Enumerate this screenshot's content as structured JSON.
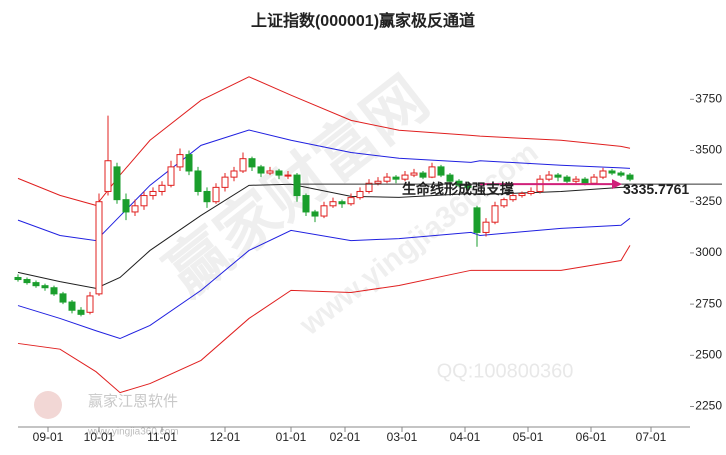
{
  "chart_data": {
    "type": "candlestick",
    "title": "上证指数(000001)赢家极反通道",
    "xlim": [
      0,
      224
    ],
    "xticks": [
      {
        "value": 10,
        "label": "09-01"
      },
      {
        "value": 27,
        "label": "10-01"
      },
      {
        "value": 48,
        "label": "11-01"
      },
      {
        "value": 69,
        "label": "12-01"
      },
      {
        "value": 91,
        "label": "01-01"
      },
      {
        "value": 109,
        "label": "02-01"
      },
      {
        "value": 128,
        "label": "03-01"
      },
      {
        "value": 149,
        "label": "04-01"
      },
      {
        "value": 170,
        "label": "05-01"
      },
      {
        "value": 191,
        "label": "06-01"
      },
      {
        "value": 211,
        "label": "07-01"
      }
    ],
    "ylim": [
      2150,
      4020
    ],
    "yticks": [
      2250,
      2500,
      2750,
      3000,
      3250,
      3500,
      3750
    ],
    "grid": false,
    "up_color": "#e0201f",
    "down_color": "#1a9e2c",
    "x": [
      0,
      3,
      6,
      9,
      12,
      15,
      18,
      21,
      24,
      27,
      30,
      33,
      36,
      39,
      42,
      45,
      48,
      51,
      54,
      57,
      60,
      63,
      66,
      69,
      72,
      75,
      78,
      81,
      84,
      87,
      90,
      93,
      96,
      99,
      102,
      105,
      108,
      111,
      114,
      117,
      120,
      123,
      126,
      129,
      132,
      135,
      138,
      141,
      144,
      147,
      150,
      153,
      156,
      159,
      162,
      165,
      168,
      171,
      174,
      177,
      180,
      183,
      186,
      189,
      192,
      195,
      198,
      201,
      204
    ],
    "ohlc": [
      [
        2880,
        2895,
        2860,
        2870
      ],
      [
        2870,
        2880,
        2845,
        2855
      ],
      [
        2855,
        2865,
        2830,
        2840
      ],
      [
        2840,
        2850,
        2815,
        2830
      ],
      [
        2830,
        2840,
        2790,
        2800
      ],
      [
        2800,
        2810,
        2750,
        2760
      ],
      [
        2760,
        2770,
        2705,
        2720
      ],
      [
        2720,
        2735,
        2690,
        2700
      ],
      [
        2710,
        2810,
        2700,
        2790
      ],
      [
        2800,
        3290,
        2790,
        3250
      ],
      [
        3300,
        3670,
        3280,
        3450
      ],
      [
        3420,
        3440,
        3240,
        3260
      ],
      [
        3260,
        3290,
        3160,
        3200
      ],
      [
        3200,
        3260,
        3180,
        3230
      ],
      [
        3230,
        3300,
        3210,
        3280
      ],
      [
        3280,
        3320,
        3260,
        3300
      ],
      [
        3300,
        3350,
        3280,
        3330
      ],
      [
        3330,
        3450,
        3320,
        3420
      ],
      [
        3420,
        3510,
        3400,
        3480
      ],
      [
        3480,
        3500,
        3380,
        3400
      ],
      [
        3400,
        3420,
        3280,
        3300
      ],
      [
        3300,
        3320,
        3220,
        3250
      ],
      [
        3250,
        3340,
        3240,
        3320
      ],
      [
        3320,
        3390,
        3300,
        3370
      ],
      [
        3370,
        3420,
        3350,
        3400
      ],
      [
        3400,
        3490,
        3390,
        3460
      ],
      [
        3460,
        3470,
        3400,
        3420
      ],
      [
        3420,
        3430,
        3370,
        3390
      ],
      [
        3390,
        3420,
        3380,
        3400
      ],
      [
        3400,
        3410,
        3360,
        3380
      ],
      [
        3380,
        3400,
        3360,
        3380
      ],
      [
        3380,
        3390,
        3250,
        3280
      ],
      [
        3280,
        3290,
        3180,
        3200
      ],
      [
        3200,
        3210,
        3150,
        3180
      ],
      [
        3180,
        3250,
        3170,
        3230
      ],
      [
        3230,
        3270,
        3220,
        3250
      ],
      [
        3250,
        3260,
        3220,
        3240
      ],
      [
        3240,
        3290,
        3230,
        3270
      ],
      [
        3270,
        3320,
        3260,
        3300
      ],
      [
        3300,
        3360,
        3290,
        3340
      ],
      [
        3340,
        3370,
        3330,
        3350
      ],
      [
        3350,
        3390,
        3340,
        3370
      ],
      [
        3370,
        3380,
        3340,
        3360
      ],
      [
        3360,
        3400,
        3350,
        3380
      ],
      [
        3380,
        3410,
        3370,
        3390
      ],
      [
        3390,
        3400,
        3360,
        3370
      ],
      [
        3370,
        3440,
        3365,
        3420
      ],
      [
        3420,
        3430,
        3370,
        3380
      ],
      [
        3380,
        3390,
        3340,
        3350
      ],
      [
        3350,
        3360,
        3320,
        3330
      ],
      [
        3330,
        3350,
        3310,
        3320
      ],
      [
        3220,
        3230,
        3030,
        3100
      ],
      [
        3100,
        3170,
        3080,
        3150
      ],
      [
        3150,
        3250,
        3140,
        3230
      ],
      [
        3230,
        3270,
        3220,
        3260
      ],
      [
        3260,
        3290,
        3250,
        3280
      ],
      [
        3280,
        3300,
        3270,
        3290
      ],
      [
        3290,
        3320,
        3280,
        3300
      ],
      [
        3300,
        3380,
        3290,
        3360
      ],
      [
        3360,
        3400,
        3350,
        3380
      ],
      [
        3380,
        3390,
        3350,
        3370
      ],
      [
        3370,
        3380,
        3340,
        3350
      ],
      [
        3350,
        3375,
        3340,
        3360
      ],
      [
        3360,
        3370,
        3330,
        3340
      ],
      [
        3340,
        3385,
        3335,
        3370
      ],
      [
        3370,
        3415,
        3360,
        3400
      ],
      [
        3400,
        3410,
        3380,
        3390
      ],
      [
        3390,
        3400,
        3370,
        3380
      ],
      [
        3380,
        3390,
        3350,
        3360
      ]
    ],
    "line_x": [
      0,
      14,
      26,
      34,
      44,
      61,
      77,
      91,
      111,
      127,
      151,
      154,
      181,
      201,
      204
    ],
    "lines": [
      {
        "color": "#e02020",
        "values": [
          3364,
          3281,
          3232,
          3380,
          3550,
          3745,
          3860,
          3770,
          3647,
          3599,
          3574,
          3570,
          3550,
          3520,
          3511
        ]
      },
      {
        "color": "#2020e0",
        "values": [
          3160,
          3085,
          3060,
          3180,
          3330,
          3525,
          3600,
          3550,
          3490,
          3462,
          3442,
          3450,
          3428,
          3415,
          3413
        ]
      },
      {
        "color": "#202020",
        "values": [
          2905,
          2860,
          2827,
          2880,
          3012,
          3183,
          3330,
          3335,
          3276,
          3271,
          3290,
          3285,
          3300,
          3320,
          3320
        ]
      },
      {
        "color": "#2020e0",
        "values": [
          2743,
          2680,
          2620,
          2582,
          2646,
          2817,
          3012,
          3110,
          3060,
          3070,
          3100,
          3085,
          3120,
          3135,
          3169
        ]
      },
      {
        "color": "#e02020",
        "values": [
          2558,
          2530,
          2420,
          2318,
          2362,
          2475,
          2680,
          2817,
          2807,
          2841,
          2915,
          2915,
          2915,
          2963,
          3037
        ]
      }
    ],
    "support": {
      "text": "生命线形成强支撑",
      "value": 3335.7761
    },
    "watermarks": {
      "main": "赢家财富网",
      "qq": "QQ:100800360",
      "software": "赢家江恩软件",
      "site": "www.yingjia360.com"
    }
  }
}
